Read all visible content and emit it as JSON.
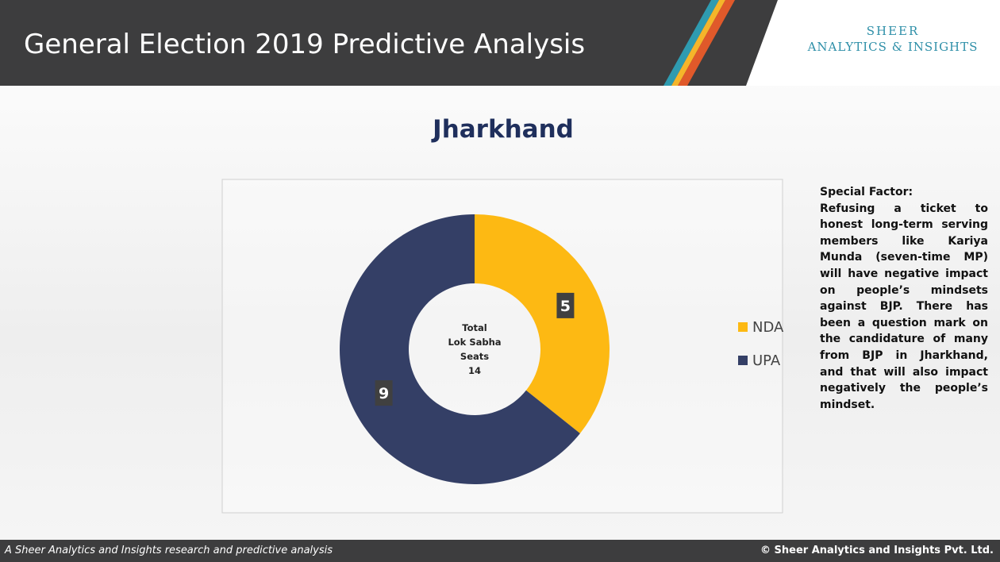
{
  "header": {
    "title": "General Election 2019 Predictive Analysis",
    "logo_top": "SHEER",
    "logo_bottom": "ANALYTICS & INSIGHTS"
  },
  "chart_data": {
    "type": "donut",
    "title": "Jharkhand",
    "categories": [
      "NDA",
      "UPA"
    ],
    "values": [
      5,
      9
    ],
    "colors": [
      "#fdb913",
      "#343f66"
    ],
    "center_label": [
      "Total",
      "Lok Sabha",
      "Seats"
    ],
    "center_total": 14
  },
  "side_note": {
    "heading": "Special Factor:",
    "text": "Refusing a ticket to honest long-term serving members like Kariya Munda (seven-time MP) will have negative impact on people’s mindsets against BJP. There has been a question mark on the candidature of many from BJP in Jharkhand, and that will also impact negatively the people’s mindset."
  },
  "footer": {
    "left": "A Sheer Analytics and Insights research and predictive analysis",
    "right": "© Sheer Analytics and Insights Pvt. Ltd."
  }
}
